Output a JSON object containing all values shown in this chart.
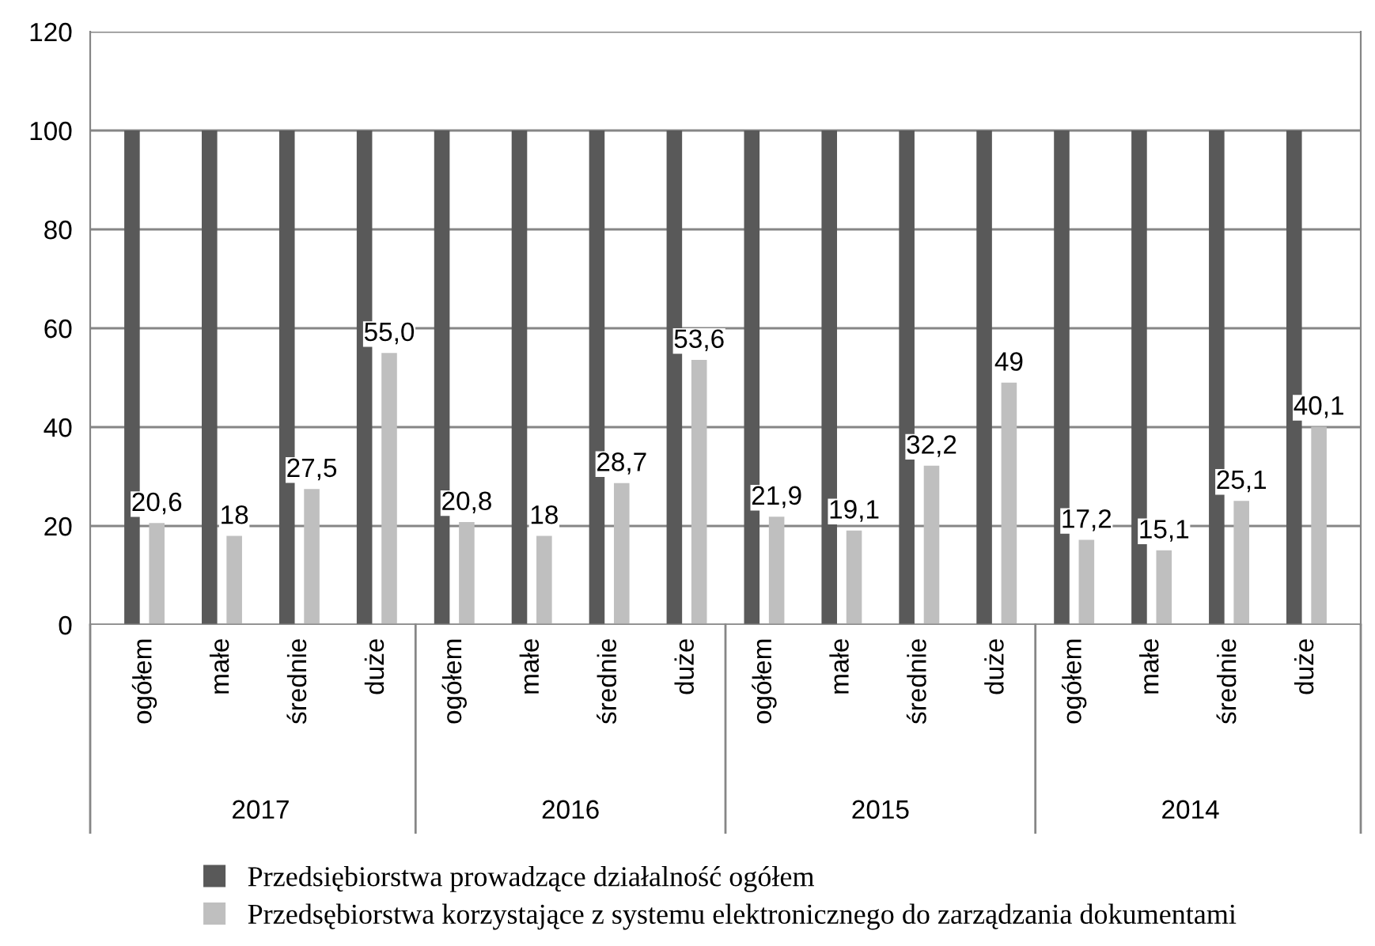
{
  "chart_data": {
    "type": "bar",
    "categories": [
      "ogółem",
      "małe",
      "średnie",
      "duże",
      "ogółem",
      "małe",
      "średnie",
      "duże",
      "ogółem",
      "małe",
      "średnie",
      "duże",
      "ogółem",
      "małe",
      "średnie",
      "duże"
    ],
    "series": [
      {
        "name": "Przedsiębiorstwa prowadzące działalność ogółem",
        "color": "#595959",
        "values": [
          100,
          100,
          100,
          100,
          100,
          100,
          100,
          100,
          100,
          100,
          100,
          100,
          100,
          100,
          100,
          100
        ]
      },
      {
        "name": "Przedsębiorstwa korzystające z systemu elektronicznego do zarządzania dokumentami",
        "color": "#bfbfbf",
        "values": [
          20.6,
          18,
          27.5,
          55.0,
          20.8,
          18,
          28.7,
          53.6,
          21.9,
          19.1,
          32.2,
          49,
          17.2,
          15.1,
          25.1,
          40.1
        ],
        "value_labels": [
          "20,6",
          "18",
          "27,5",
          "55,0",
          "20,8",
          "18",
          "28,7",
          "53,6",
          "21,9",
          "19,1",
          "32,2",
          "49",
          "17,2",
          "15,1",
          "25,1",
          "40,1"
        ]
      }
    ],
    "annotations": [
      "2017",
      "2016",
      "2015",
      "2014"
    ],
    "ylim": [
      0,
      120
    ],
    "yticks": [
      0,
      20,
      40,
      60,
      80,
      100,
      120
    ],
    "grid": "y",
    "legend": "bottom"
  }
}
